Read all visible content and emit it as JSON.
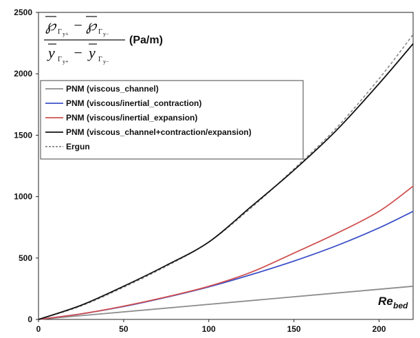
{
  "chart_data": {
    "type": "line",
    "xlim": [
      0,
      220
    ],
    "ylim": [
      0,
      2500
    ],
    "xticks": [
      0,
      50,
      100,
      150,
      200
    ],
    "yticks": [
      0,
      500,
      1000,
      1500,
      2000,
      2500
    ],
    "xlabel": {
      "main": "Re",
      "sub": "bed"
    },
    "ylabel": {
      "num_left": "℘",
      "num_left_sub": "Γ",
      "num_left_subsub": "y+",
      "minus": "−",
      "num_right": "℘",
      "num_right_sub": "Γ",
      "num_right_subsub": "y−",
      "den_left": "y",
      "den_left_sub": "Γ",
      "den_left_subsub": "y+",
      "den_right": "y",
      "den_right_sub": "Γ",
      "den_right_subsub": "y−",
      "unit": "(Pa/m)"
    },
    "grid": false,
    "legend_position": "upper-left",
    "series": [
      {
        "name": "PNM (viscous_channel)",
        "color": "#8c8c8c",
        "dash": "solid",
        "x": [
          0,
          220
        ],
        "y": [
          0,
          270
        ]
      },
      {
        "name": "PNM (viscous/inertial_contraction)",
        "color": "#3c50c8",
        "dash": "solid",
        "x": [
          0,
          25,
          50,
          75,
          100,
          125,
          150,
          175,
          200,
          220
        ],
        "y": [
          0,
          45,
          105,
          180,
          265,
          365,
          475,
          600,
          745,
          880
        ]
      },
      {
        "name": "PNM (viscous/inertial_expansion)",
        "color": "#d05050",
        "dash": "solid",
        "x": [
          0,
          25,
          50,
          75,
          100,
          125,
          150,
          175,
          200,
          220
        ],
        "y": [
          0,
          45,
          108,
          183,
          270,
          385,
          540,
          700,
          880,
          1085
        ]
      },
      {
        "name": "PNM (viscous_channel+contraction/expansion)",
        "color": "#111111",
        "dash": "solid",
        "x": [
          0,
          25,
          50,
          75,
          100,
          125,
          150,
          175,
          200,
          220
        ],
        "y": [
          0,
          115,
          270,
          440,
          630,
          920,
          1215,
          1540,
          1920,
          2245
        ]
      },
      {
        "name": "Ergun",
        "color": "#888888",
        "dash": "dashed",
        "x": [
          0,
          25,
          50,
          75,
          100,
          125,
          150,
          175,
          200,
          220
        ],
        "y": [
          0,
          110,
          262,
          433,
          630,
          910,
          1225,
          1560,
          1960,
          2320
        ]
      }
    ]
  }
}
